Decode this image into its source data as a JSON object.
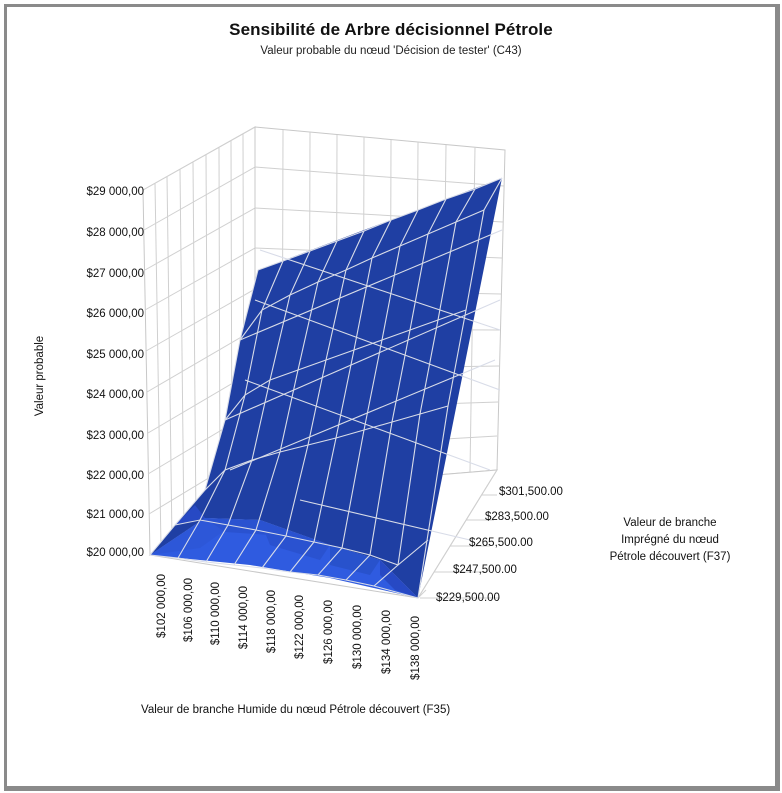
{
  "chart": {
    "title": "Sensibilité de Arbre décisionnel Pétrole",
    "subtitle": "Valeur probable du nœud 'Décision de tester' (C43)",
    "y_axis": {
      "label": "Valeur probable",
      "ticks": [
        "$29 000,00",
        "$28 000,00",
        "$27 000,00",
        "$26 000,00",
        "$25 000,00",
        "$24 000,00",
        "$23 000,00",
        "$22 000,00",
        "$21 000,00",
        "$20 000,00"
      ]
    },
    "x_axis": {
      "label": "Valeur de branche Humide du nœud Pétrole découvert (F35)",
      "ticks": [
        "$102 000,00",
        "$106 000,00",
        "$110 000,00",
        "$114 000,00",
        "$118 000,00",
        "$122 000,00",
        "$126 000,00",
        "$130 000,00",
        "$134 000,00",
        "$138 000,00"
      ]
    },
    "z_axis": {
      "label_line1": "Valeur de branche",
      "label_line2": "Imprégné du nœud",
      "label_line3": "Pétrole découvert (F37)",
      "ticks": [
        "$301,500.00",
        "$283,500.00",
        "$265,500.00",
        "$247,500.00",
        "$229,500.00"
      ]
    },
    "colors": {
      "surface_dark": "#1f3fa3",
      "surface_light": "#2f5be0",
      "surface_mid": "#2749c4",
      "gridline": "#d0d0d0",
      "mesh": "#d8dce8",
      "frame_border": "#8a8a8a"
    }
  },
  "chart_data": {
    "type": "surface",
    "title": "Sensibilité de Arbre décisionnel Pétrole",
    "subtitle": "Valeur probable du nœud 'Décision de tester' (C43)",
    "xlabel": "Valeur de branche Humide du nœud Pétrole découvert (F35)",
    "ylabel": "Valeur probable",
    "zlabel": "Valeur de branche Imprégné du nœud Pétrole découvert (F37)",
    "x": [
      102000,
      106000,
      110000,
      114000,
      118000,
      122000,
      126000,
      130000,
      134000,
      138000
    ],
    "z": [
      229500,
      247500,
      265500,
      283500,
      301500
    ],
    "ylim": [
      20000,
      29000
    ],
    "approx_values_description": "Flat at ~$20,000 for low Humide/low Imprégné; rises roughly linearly with both inputs; reaches ~$27,000 at x=$102,000/z=$301,500 and ~$28,800 at x=$138,000/z=$301,500",
    "corner_values": {
      "x102000_z229500": 20000,
      "x138000_z229500": 20000,
      "x102000_z301500": 27000,
      "x138000_z301500": 28800
    }
  }
}
